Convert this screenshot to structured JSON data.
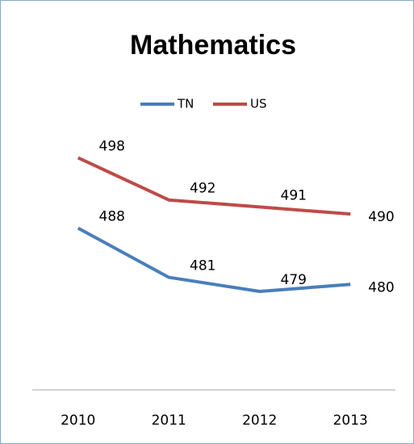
{
  "chart_data": {
    "type": "line",
    "title": "Mathematics",
    "categories": [
      "2010",
      "2011",
      "2012",
      "2013"
    ],
    "series": [
      {
        "name": "TN",
        "color": "#4a7ebb",
        "values": [
          488,
          481,
          479,
          480
        ]
      },
      {
        "name": "US",
        "color": "#be4b48",
        "values": [
          498,
          492,
          491,
          490
        ]
      }
    ],
    "ylim": [
      465,
      500
    ],
    "legend": "top"
  }
}
